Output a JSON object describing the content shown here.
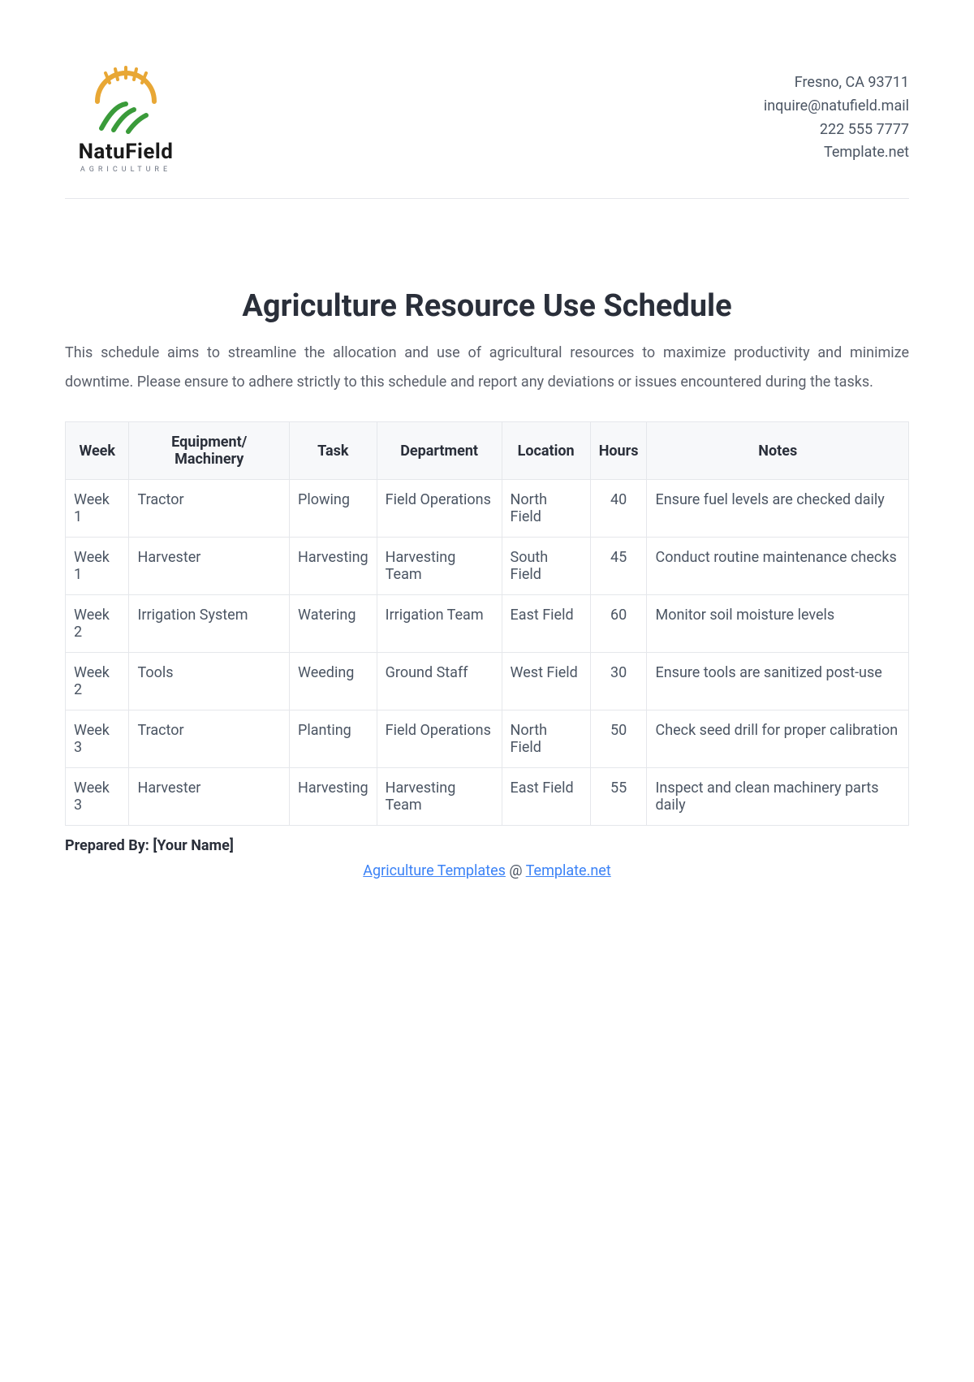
{
  "brand": {
    "name": "NatuField",
    "tagline": "AGRICULTURE",
    "colors": {
      "sun": "#e8a735",
      "leaf": "#3a9b3a"
    }
  },
  "contact": {
    "address": "Fresno, CA 93711",
    "email": "inquire@natufield.mail",
    "phone": "222 555 7777",
    "site": "Template.net"
  },
  "document": {
    "title": "Agriculture Resource Use Schedule",
    "intro": "This schedule aims to streamline the allocation and use of agricultural resources to maximize productivity and minimize downtime. Please ensure to adhere strictly to this schedule and report any deviations or issues encountered during the tasks.",
    "prepared_by_label": "Prepared By: [Your Name]"
  },
  "table": {
    "columns": [
      "Week",
      "Equipment/ Machinery",
      "Task",
      "Department",
      "Location",
      "Hours",
      "Notes"
    ],
    "rows": [
      [
        "Week 1",
        "Tractor",
        "Plowing",
        "Field Operations",
        "North Field",
        "40",
        "Ensure fuel levels are checked daily"
      ],
      [
        "Week 1",
        "Harvester",
        "Harvesting",
        "Harvesting Team",
        "South Field",
        "45",
        "Conduct routine maintenance checks"
      ],
      [
        "Week 2",
        "Irrigation System",
        "Watering",
        "Irrigation Team",
        "East Field",
        "60",
        "Monitor soil moisture levels"
      ],
      [
        "Week 2",
        "Tools",
        "Weeding",
        "Ground Staff",
        "West Field",
        "30",
        "Ensure tools are sanitized post-use"
      ],
      [
        "Week 3",
        "Tractor",
        "Planting",
        "Field Operations",
        "North Field",
        "50",
        "Check seed drill for proper calibration"
      ],
      [
        "Week 3",
        "Harvester",
        "Harvesting",
        "Harvesting Team",
        "East Field",
        "55",
        "Inspect and clean machinery parts daily"
      ]
    ]
  },
  "footer": {
    "link1_text": "Agriculture Templates",
    "at": " @ ",
    "link2_text": "Template.net"
  }
}
